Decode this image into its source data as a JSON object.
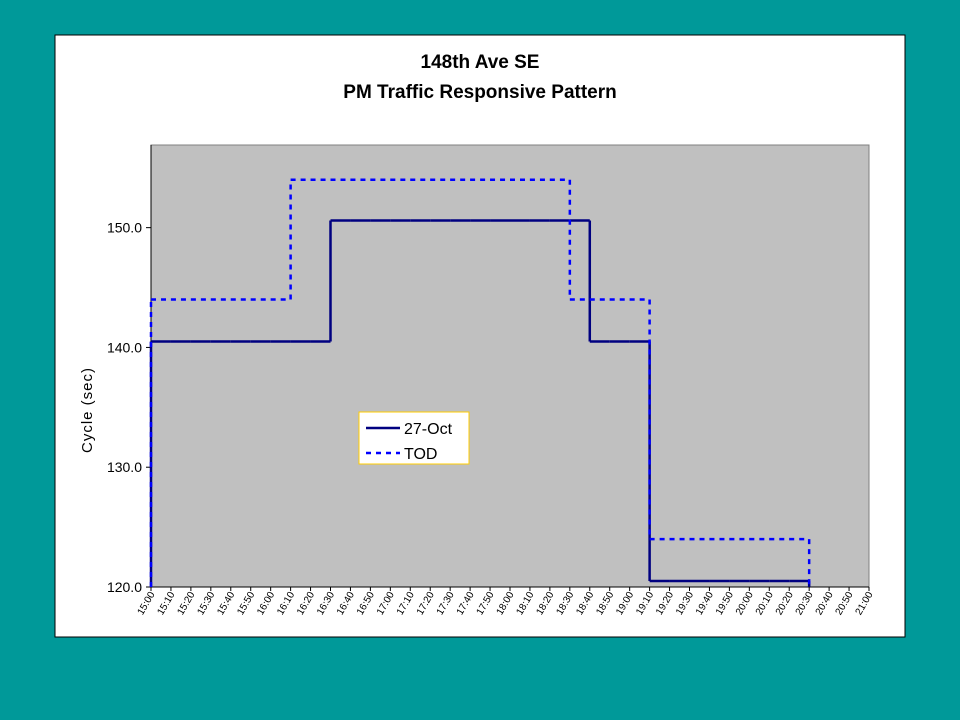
{
  "chart_data": {
    "type": "step-line",
    "title": [
      "148th Ave SE",
      "PM Traffic Responsive Pattern"
    ],
    "y_label": "Cycle (sec)",
    "categories": [
      "15:00",
      "15:10",
      "15:20",
      "15:30",
      "15:40",
      "15:50",
      "16:00",
      "16:10",
      "16:20",
      "16:30",
      "16:40",
      "16:50",
      "17:00",
      "17:10",
      "17:20",
      "17:30",
      "17:40",
      "17:50",
      "18:00",
      "18:10",
      "18:20",
      "18:30",
      "18:40",
      "18:50",
      "19:00",
      "19:10",
      "19:20",
      "19:30",
      "19:40",
      "19:50",
      "20:00",
      "20:10",
      "20:20",
      "20:30",
      "20:40",
      "20:50",
      "21:00"
    ],
    "series": [
      {
        "name": "27-Oct",
        "color": "#000080",
        "dash": false,
        "values": [
          140.5,
          140.5,
          140.5,
          140.5,
          140.5,
          140.5,
          140.5,
          140.5,
          140.5,
          150.6,
          150.6,
          150.6,
          150.6,
          150.6,
          150.6,
          150.6,
          150.6,
          150.6,
          150.6,
          150.6,
          150.6,
          150.6,
          140.5,
          140.5,
          140.5,
          120.5,
          120.5,
          120.5,
          120.5,
          120.5,
          120.5,
          120.5,
          120.5,
          null,
          null,
          null,
          null
        ]
      },
      {
        "name": "TOD",
        "color": "#0000ff",
        "dash": true,
        "values": [
          144,
          144,
          144,
          144,
          144,
          144,
          144,
          154,
          154,
          154,
          154,
          154,
          154,
          154,
          154,
          154,
          154,
          154,
          154,
          154,
          154,
          144,
          144,
          144,
          144,
          124,
          124,
          124,
          124,
          124,
          124,
          124,
          124,
          null,
          null,
          null,
          null
        ]
      }
    ],
    "ylim": [
      120,
      156.9
    ],
    "yticks": [
      {
        "value": 120,
        "label": "120.0"
      },
      {
        "value": 130,
        "label": "130.0"
      },
      {
        "value": 140,
        "label": "140.0"
      },
      {
        "value": 150,
        "label": "150.0"
      }
    ],
    "plot_background": "#c0c0c0"
  }
}
